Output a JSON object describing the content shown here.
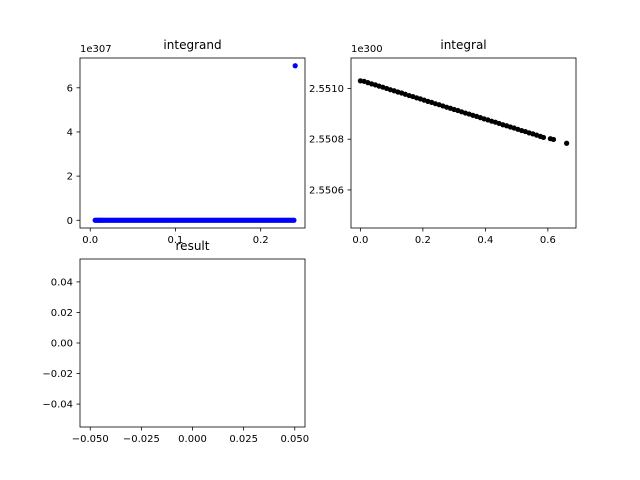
{
  "chart_data": [
    {
      "type": "scatter",
      "title": "integrand",
      "xlabel": "",
      "ylabel": "",
      "offset_label": "1e307",
      "xlim": [
        -0.012,
        0.252
      ],
      "ylim": [
        -0.35,
        7.35
      ],
      "xticks": [
        0.0,
        0.1,
        0.2
      ],
      "xtick_labels": [
        "0.0",
        "0.1",
        "0.2"
      ],
      "yticks": [
        0,
        2,
        4,
        6
      ],
      "ytick_labels": [
        "0",
        "2",
        "4",
        "6"
      ],
      "grid": false,
      "color": "#0000ff",
      "points": [
        [
          0.0058,
          0
        ],
        [
          0.0075,
          0
        ],
        [
          0.009,
          0
        ],
        [
          0.0105,
          0
        ],
        [
          0.012,
          0
        ],
        [
          0.0135,
          0
        ],
        [
          0.015,
          0
        ],
        [
          0.017,
          0
        ],
        [
          0.019,
          0
        ],
        [
          0.021,
          0
        ],
        [
          0.023,
          0
        ],
        [
          0.025,
          0
        ],
        [
          0.027,
          0
        ],
        [
          0.029,
          0
        ],
        [
          0.031,
          0
        ],
        [
          0.033,
          0
        ],
        [
          0.035,
          0
        ],
        [
          0.037,
          0
        ],
        [
          0.039,
          0
        ],
        [
          0.041,
          0
        ],
        [
          0.043,
          0
        ],
        [
          0.045,
          0
        ],
        [
          0.047,
          0
        ],
        [
          0.049,
          0
        ],
        [
          0.051,
          0
        ],
        [
          0.053,
          0
        ],
        [
          0.055,
          0
        ],
        [
          0.057,
          0
        ],
        [
          0.059,
          0
        ],
        [
          0.061,
          0
        ],
        [
          0.063,
          0
        ],
        [
          0.065,
          0
        ],
        [
          0.067,
          0
        ],
        [
          0.069,
          0
        ],
        [
          0.071,
          0
        ],
        [
          0.073,
          0
        ],
        [
          0.075,
          0
        ],
        [
          0.077,
          0
        ],
        [
          0.079,
          0
        ],
        [
          0.081,
          0
        ],
        [
          0.083,
          0
        ],
        [
          0.085,
          0
        ],
        [
          0.087,
          0
        ],
        [
          0.089,
          0
        ],
        [
          0.091,
          0
        ],
        [
          0.093,
          0
        ],
        [
          0.095,
          0
        ],
        [
          0.097,
          0
        ],
        [
          0.099,
          0
        ],
        [
          0.101,
          0
        ],
        [
          0.103,
          0
        ],
        [
          0.105,
          0
        ],
        [
          0.107,
          0
        ],
        [
          0.109,
          0
        ],
        [
          0.111,
          0
        ],
        [
          0.113,
          0
        ],
        [
          0.115,
          0
        ],
        [
          0.117,
          0
        ],
        [
          0.119,
          0
        ],
        [
          0.121,
          0
        ],
        [
          0.123,
          0
        ],
        [
          0.125,
          0
        ],
        [
          0.127,
          0
        ],
        [
          0.129,
          0
        ],
        [
          0.131,
          0
        ],
        [
          0.133,
          0
        ],
        [
          0.135,
          0
        ],
        [
          0.137,
          0
        ],
        [
          0.139,
          0
        ],
        [
          0.141,
          0
        ],
        [
          0.143,
          0
        ],
        [
          0.145,
          0
        ],
        [
          0.147,
          0
        ],
        [
          0.149,
          0
        ],
        [
          0.151,
          0
        ],
        [
          0.153,
          0
        ],
        [
          0.155,
          0
        ],
        [
          0.157,
          0
        ],
        [
          0.159,
          0
        ],
        [
          0.161,
          0
        ],
        [
          0.163,
          0
        ],
        [
          0.165,
          0
        ],
        [
          0.167,
          0
        ],
        [
          0.169,
          0
        ],
        [
          0.171,
          0
        ],
        [
          0.173,
          0
        ],
        [
          0.175,
          0
        ],
        [
          0.177,
          0
        ],
        [
          0.179,
          0
        ],
        [
          0.181,
          0
        ],
        [
          0.183,
          0
        ],
        [
          0.185,
          0
        ],
        [
          0.187,
          0
        ],
        [
          0.189,
          0
        ],
        [
          0.191,
          0
        ],
        [
          0.193,
          0
        ],
        [
          0.195,
          0
        ],
        [
          0.197,
          0
        ],
        [
          0.199,
          0
        ],
        [
          0.201,
          0
        ],
        [
          0.203,
          0
        ],
        [
          0.205,
          0
        ],
        [
          0.207,
          0
        ],
        [
          0.209,
          0
        ],
        [
          0.211,
          0
        ],
        [
          0.213,
          0
        ],
        [
          0.215,
          0
        ],
        [
          0.217,
          0
        ],
        [
          0.219,
          0
        ],
        [
          0.221,
          0
        ],
        [
          0.223,
          0
        ],
        [
          0.225,
          0
        ],
        [
          0.227,
          0
        ],
        [
          0.229,
          0
        ],
        [
          0.231,
          0
        ],
        [
          0.233,
          0
        ],
        [
          0.235,
          0
        ],
        [
          0.237,
          0
        ],
        [
          0.239,
          0
        ],
        [
          0.2405,
          7.0
        ]
      ]
    },
    {
      "type": "scatter",
      "title": "integral",
      "xlabel": "",
      "ylabel": "",
      "offset_label": "1e300",
      "xlim": [
        -0.03,
        0.69
      ],
      "ylim": [
        2.55045,
        2.55112
      ],
      "xticks": [
        0.0,
        0.2,
        0.4,
        0.6
      ],
      "xtick_labels": [
        "0.0",
        "0.2",
        "0.4",
        "0.6"
      ],
      "yticks": [
        2.5506,
        2.5508,
        2.551
      ],
      "ytick_labels": [
        "2.5506",
        "2.5508",
        "2.5510"
      ],
      "grid": false,
      "color": "#000000",
      "points": [
        [
          0.0,
          2.55103
        ],
        [
          0.012,
          2.551028
        ],
        [
          0.024,
          2.551023
        ],
        [
          0.036,
          2.551018
        ],
        [
          0.048,
          2.551014
        ],
        [
          0.06,
          2.551009
        ],
        [
          0.072,
          2.551005
        ],
        [
          0.084,
          2.551
        ],
        [
          0.096,
          2.550995
        ],
        [
          0.108,
          2.550991
        ],
        [
          0.12,
          2.550986
        ],
        [
          0.132,
          2.550982
        ],
        [
          0.144,
          2.550977
        ],
        [
          0.156,
          2.550972
        ],
        [
          0.168,
          2.550968
        ],
        [
          0.18,
          2.550963
        ],
        [
          0.192,
          2.550959
        ],
        [
          0.204,
          2.550954
        ],
        [
          0.216,
          2.550949
        ],
        [
          0.228,
          2.550945
        ],
        [
          0.24,
          2.55094
        ],
        [
          0.252,
          2.550936
        ],
        [
          0.264,
          2.550931
        ],
        [
          0.276,
          2.550926
        ],
        [
          0.288,
          2.550922
        ],
        [
          0.3,
          2.550917
        ],
        [
          0.312,
          2.550913
        ],
        [
          0.324,
          2.550908
        ],
        [
          0.336,
          2.550903
        ],
        [
          0.348,
          2.550899
        ],
        [
          0.36,
          2.550894
        ],
        [
          0.372,
          2.55089
        ],
        [
          0.384,
          2.550885
        ],
        [
          0.396,
          2.55088
        ],
        [
          0.408,
          2.550876
        ],
        [
          0.42,
          2.550871
        ],
        [
          0.432,
          2.550867
        ],
        [
          0.444,
          2.550862
        ],
        [
          0.456,
          2.550857
        ],
        [
          0.468,
          2.550853
        ],
        [
          0.48,
          2.550848
        ],
        [
          0.492,
          2.550844
        ],
        [
          0.504,
          2.550839
        ],
        [
          0.516,
          2.550834
        ],
        [
          0.528,
          2.55083
        ],
        [
          0.54,
          2.550825
        ],
        [
          0.552,
          2.550821
        ],
        [
          0.564,
          2.550816
        ],
        [
          0.576,
          2.550811
        ],
        [
          0.586,
          2.550807
        ],
        [
          0.608,
          2.550802
        ],
        [
          0.618,
          2.550799
        ],
        [
          0.66,
          2.550784
        ]
      ]
    },
    {
      "type": "scatter",
      "title": "result",
      "xlabel": "",
      "ylabel": "",
      "xlim": [
        -0.055,
        0.055
      ],
      "ylim": [
        -0.055,
        0.055
      ],
      "xticks": [
        -0.05,
        -0.025,
        0.0,
        0.025,
        0.05
      ],
      "xtick_labels": [
        "−0.050",
        "−0.025",
        "0.000",
        "0.025",
        "0.050"
      ],
      "yticks": [
        -0.04,
        -0.02,
        0.0,
        0.02,
        0.04
      ],
      "ytick_labels": [
        "−0.04",
        "−0.02",
        "0.00",
        "0.02",
        "0.04"
      ],
      "grid": false,
      "color": "#000000",
      "points": []
    }
  ]
}
